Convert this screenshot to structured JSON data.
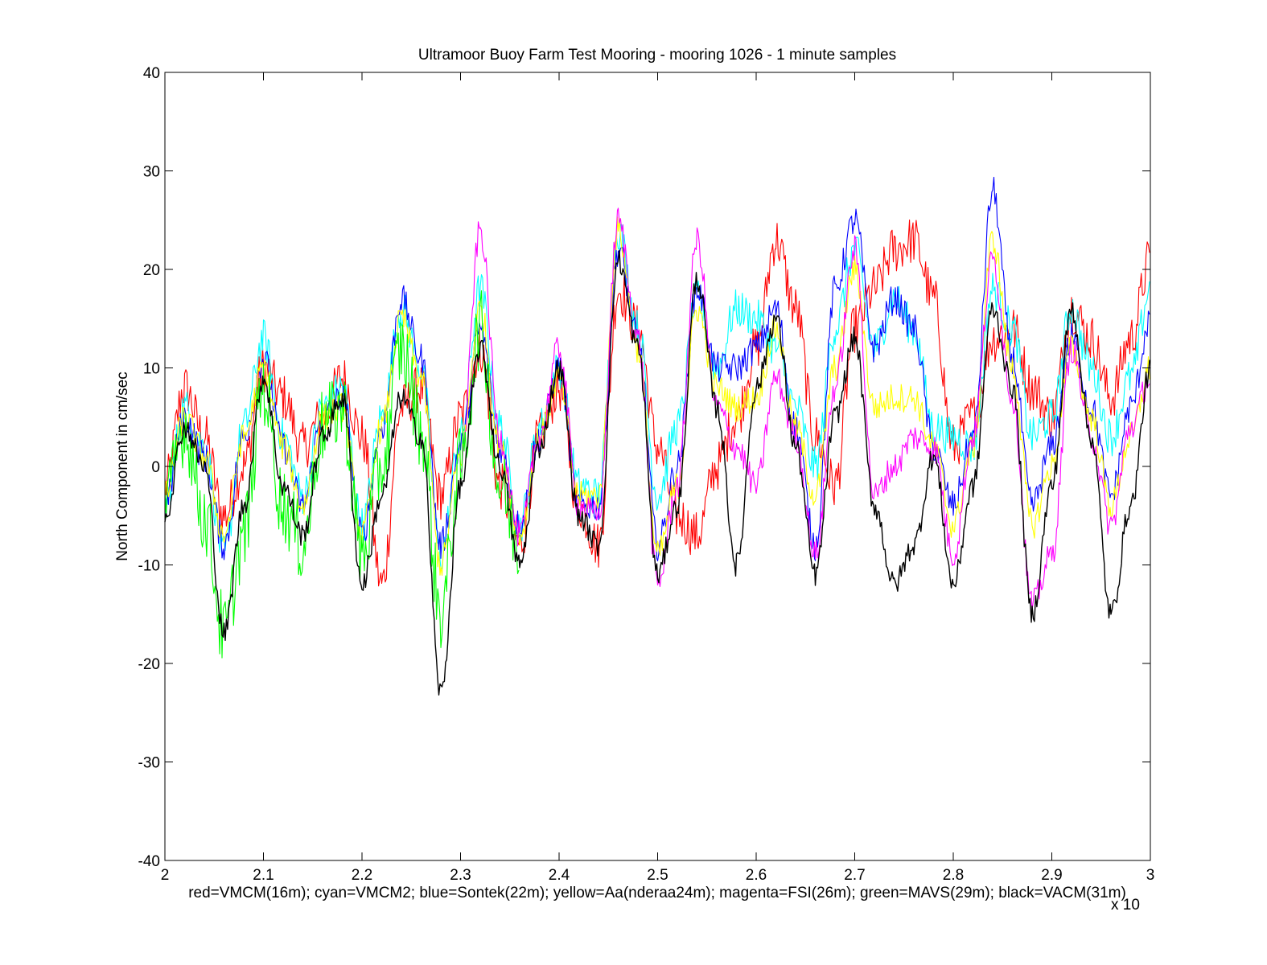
{
  "chart_data": {
    "type": "line",
    "title": "Ultramoor Buoy Farm Test Mooring - mooring 1026 - 1 minute samples",
    "xlabel": "red=VMCM(16m); cyan=VMCM2; blue=Sontek(22m); yellow=Aa(nderaa24m); magenta=FSI(26m); green=MAVS(29m); black=VACM(31m)",
    "ylabel": "North Component in cm/sec",
    "x_exponent_label": "x 10",
    "xlim": [
      2,
      3
    ],
    "ylim": [
      -40,
      40
    ],
    "xticks": [
      2,
      2.1,
      2.2,
      2.3,
      2.4,
      2.5,
      2.6,
      2.7,
      2.8,
      2.9,
      3
    ],
    "xtick_labels": [
      "2",
      "2.1",
      "2.2",
      "2.3",
      "2.4",
      "2.5",
      "2.6",
      "2.7",
      "2.8",
      "2.9",
      "3"
    ],
    "yticks": [
      -40,
      -30,
      -20,
      -10,
      0,
      10,
      20,
      30,
      40
    ],
    "ytick_labels": [
      "-40",
      "-30",
      "-20",
      "-10",
      "0",
      "10",
      "20",
      "30",
      "40"
    ],
    "grid": false,
    "series": [
      {
        "color": "#ff0000",
        "noise": 2.5,
        "x": [
          2.0,
          2.02,
          2.04,
          2.06,
          2.08,
          2.1,
          2.12,
          2.14,
          2.16,
          2.18,
          2.2,
          2.22,
          2.24,
          2.26,
          2.28,
          2.3,
          2.32,
          2.34,
          2.36,
          2.38,
          2.4,
          2.42,
          2.44,
          2.46,
          2.48,
          2.5,
          2.52,
          2.54,
          2.56,
          2.58,
          2.6,
          2.62,
          2.64,
          2.66,
          2.68,
          2.7,
          2.72,
          2.74,
          2.76,
          2.78,
          2.8,
          2.82,
          2.84,
          2.86,
          2.88,
          2.9,
          2.92,
          2.94,
          2.96,
          2.98,
          3.0
        ],
        "y": [
          -2,
          8,
          3,
          -5,
          0,
          10,
          7,
          2,
          5,
          9,
          3,
          -12,
          6,
          8,
          -3,
          5,
          12,
          -2,
          -8,
          3,
          8,
          -4,
          -8,
          18,
          14,
          2,
          -5,
          -7,
          0,
          5,
          12,
          23,
          16,
          3,
          -2,
          14,
          18,
          22,
          23,
          17,
          2,
          5,
          13,
          14,
          8,
          5,
          16,
          13,
          7,
          13,
          21
        ]
      },
      {
        "color": "#00ffff",
        "noise": 2.0,
        "x": [
          2.0,
          2.02,
          2.04,
          2.06,
          2.08,
          2.1,
          2.12,
          2.14,
          2.16,
          2.18,
          2.2,
          2.22,
          2.24,
          2.26,
          2.28,
          2.3,
          2.32,
          2.34,
          2.36,
          2.38,
          2.4,
          2.42,
          2.44,
          2.46,
          2.48,
          2.5,
          2.52,
          2.54,
          2.56,
          2.58,
          2.6,
          2.62,
          2.64,
          2.66,
          2.68,
          2.7,
          2.72,
          2.74,
          2.76,
          2.78,
          2.8,
          2.82,
          2.84,
          2.86,
          2.88,
          2.9,
          2.92,
          2.94,
          2.96,
          2.98,
          3.0
        ],
        "y": [
          -4,
          6,
          2,
          -9,
          4,
          13,
          3,
          -3,
          6,
          8,
          -6,
          5,
          16,
          10,
          -9,
          3,
          18,
          4,
          -6,
          4,
          10,
          -2,
          -3,
          24,
          14,
          -3,
          4,
          17,
          10,
          16,
          15,
          12,
          6,
          0,
          14,
          22,
          12,
          17,
          14,
          4,
          3,
          2,
          18,
          14,
          3,
          5,
          16,
          10,
          3,
          9,
          18
        ]
      },
      {
        "color": "#0000ff",
        "noise": 1.6,
        "x": [
          2.0,
          2.02,
          2.04,
          2.06,
          2.08,
          2.1,
          2.12,
          2.14,
          2.16,
          2.18,
          2.2,
          2.22,
          2.24,
          2.26,
          2.28,
          2.3,
          2.32,
          2.34,
          2.36,
          2.38,
          2.4,
          2.42,
          2.44,
          2.46,
          2.48,
          2.5,
          2.52,
          2.54,
          2.56,
          2.58,
          2.6,
          2.62,
          2.64,
          2.66,
          2.68,
          2.7,
          2.72,
          2.74,
          2.76,
          2.78,
          2.8,
          2.82,
          2.84,
          2.86,
          2.88,
          2.9,
          2.92,
          2.94,
          2.96,
          2.98,
          3.0
        ],
        "y": [
          -4,
          5,
          1,
          -8,
          3,
          11,
          2,
          -4,
          5,
          7,
          -7,
          4,
          17,
          11,
          -8,
          2,
          14,
          2,
          -6,
          3,
          10,
          -4,
          -4,
          22,
          13,
          -8,
          0,
          18,
          10,
          10,
          12,
          16,
          4,
          -8,
          18,
          25,
          12,
          17,
          14,
          2,
          -4,
          3,
          28,
          11,
          -4,
          2,
          13,
          6,
          -3,
          6,
          15
        ]
      },
      {
        "color": "#ffff00",
        "noise": 1.5,
        "x": [
          2.0,
          2.02,
          2.04,
          2.06,
          2.08,
          2.1,
          2.12,
          2.14,
          2.16,
          2.18,
          2.2,
          2.22,
          2.24,
          2.26,
          2.28,
          2.3,
          2.32,
          2.34,
          2.36,
          2.38,
          2.4,
          2.42,
          2.44,
          2.46,
          2.48,
          2.5,
          2.52,
          2.54,
          2.56,
          2.58,
          2.6,
          2.62,
          2.64,
          2.66,
          2.68,
          2.7,
          2.72,
          2.74,
          2.76,
          2.78,
          2.8,
          2.82,
          2.84,
          2.86,
          2.88,
          2.9,
          2.92,
          2.94,
          2.96,
          2.98,
          3.0
        ],
        "y": [
          -3,
          5,
          1,
          -7,
          3,
          10,
          2,
          -4,
          5,
          6,
          -7,
          4,
          15,
          9,
          -10,
          1,
          16,
          2,
          -7,
          3,
          9,
          -3,
          -3,
          24,
          12,
          -9,
          -2,
          16,
          8,
          6,
          7,
          14,
          4,
          -3,
          10,
          20,
          6,
          7,
          7,
          2,
          -6,
          2,
          23,
          10,
          -6,
          0,
          12,
          5,
          -4,
          3,
          10
        ]
      },
      {
        "color": "#ff00ff",
        "noise": 1.5,
        "x": [
          2.3,
          2.32,
          2.34,
          2.36,
          2.38,
          2.4,
          2.42,
          2.44,
          2.46,
          2.48,
          2.5,
          2.52,
          2.54,
          2.56,
          2.58,
          2.6,
          2.62,
          2.64,
          2.66,
          2.68,
          2.7,
          2.72,
          2.74,
          2.76,
          2.78,
          2.8,
          2.82,
          2.84,
          2.86,
          2.88,
          2.9,
          2.92,
          2.94,
          2.96,
          2.98,
          3.0
        ],
        "y": [
          0,
          24,
          3,
          -7,
          3,
          12,
          -4,
          -5,
          25,
          13,
          -12,
          -2,
          23,
          6,
          2,
          -2,
          9,
          3,
          -9,
          8,
          22,
          -3,
          0,
          3,
          2,
          -9,
          3,
          21,
          7,
          -14,
          -9,
          12,
          3,
          -6,
          4,
          9
        ]
      },
      {
        "color": "#00ff00",
        "noise": 4.0,
        "x": [
          2.0,
          2.02,
          2.04,
          2.06,
          2.08,
          2.1,
          2.12,
          2.14,
          2.16,
          2.18,
          2.2,
          2.22,
          2.24,
          2.26,
          2.28,
          2.3,
          2.32,
          2.34,
          2.36
        ],
        "y": [
          -4,
          4,
          -5,
          -17,
          -7,
          8,
          -4,
          -8,
          4,
          6,
          -9,
          0,
          12,
          4,
          -15,
          0,
          14,
          -2,
          -8
        ]
      },
      {
        "color": "#000000",
        "noise": 1.2,
        "x": [
          2.0,
          2.02,
          2.04,
          2.06,
          2.08,
          2.1,
          2.12,
          2.14,
          2.16,
          2.18,
          2.2,
          2.22,
          2.24,
          2.26,
          2.28,
          2.3,
          2.32,
          2.34,
          2.36,
          2.38,
          2.4,
          2.42,
          2.44,
          2.46,
          2.48,
          2.5,
          2.52,
          2.54,
          2.56,
          2.58,
          2.6,
          2.62,
          2.64,
          2.66,
          2.68,
          2.7,
          2.72,
          2.74,
          2.76,
          2.78,
          2.8,
          2.82,
          2.84,
          2.86,
          2.88,
          2.9,
          2.92,
          2.94,
          2.96,
          2.98,
          3.0
        ],
        "y": [
          -5,
          4,
          0,
          -17,
          -4,
          9,
          -2,
          -7,
          3,
          7,
          -12,
          -3,
          7,
          3,
          -23,
          -2,
          12,
          0,
          -10,
          2,
          10,
          -5,
          -8,
          21,
          12,
          -11,
          -4,
          19,
          6,
          -10,
          8,
          15,
          2,
          -11,
          5,
          13,
          -4,
          -12,
          -8,
          1,
          -12,
          -2,
          16,
          8,
          -15,
          -2,
          16,
          3,
          -15,
          -4,
          10
        ]
      }
    ]
  }
}
